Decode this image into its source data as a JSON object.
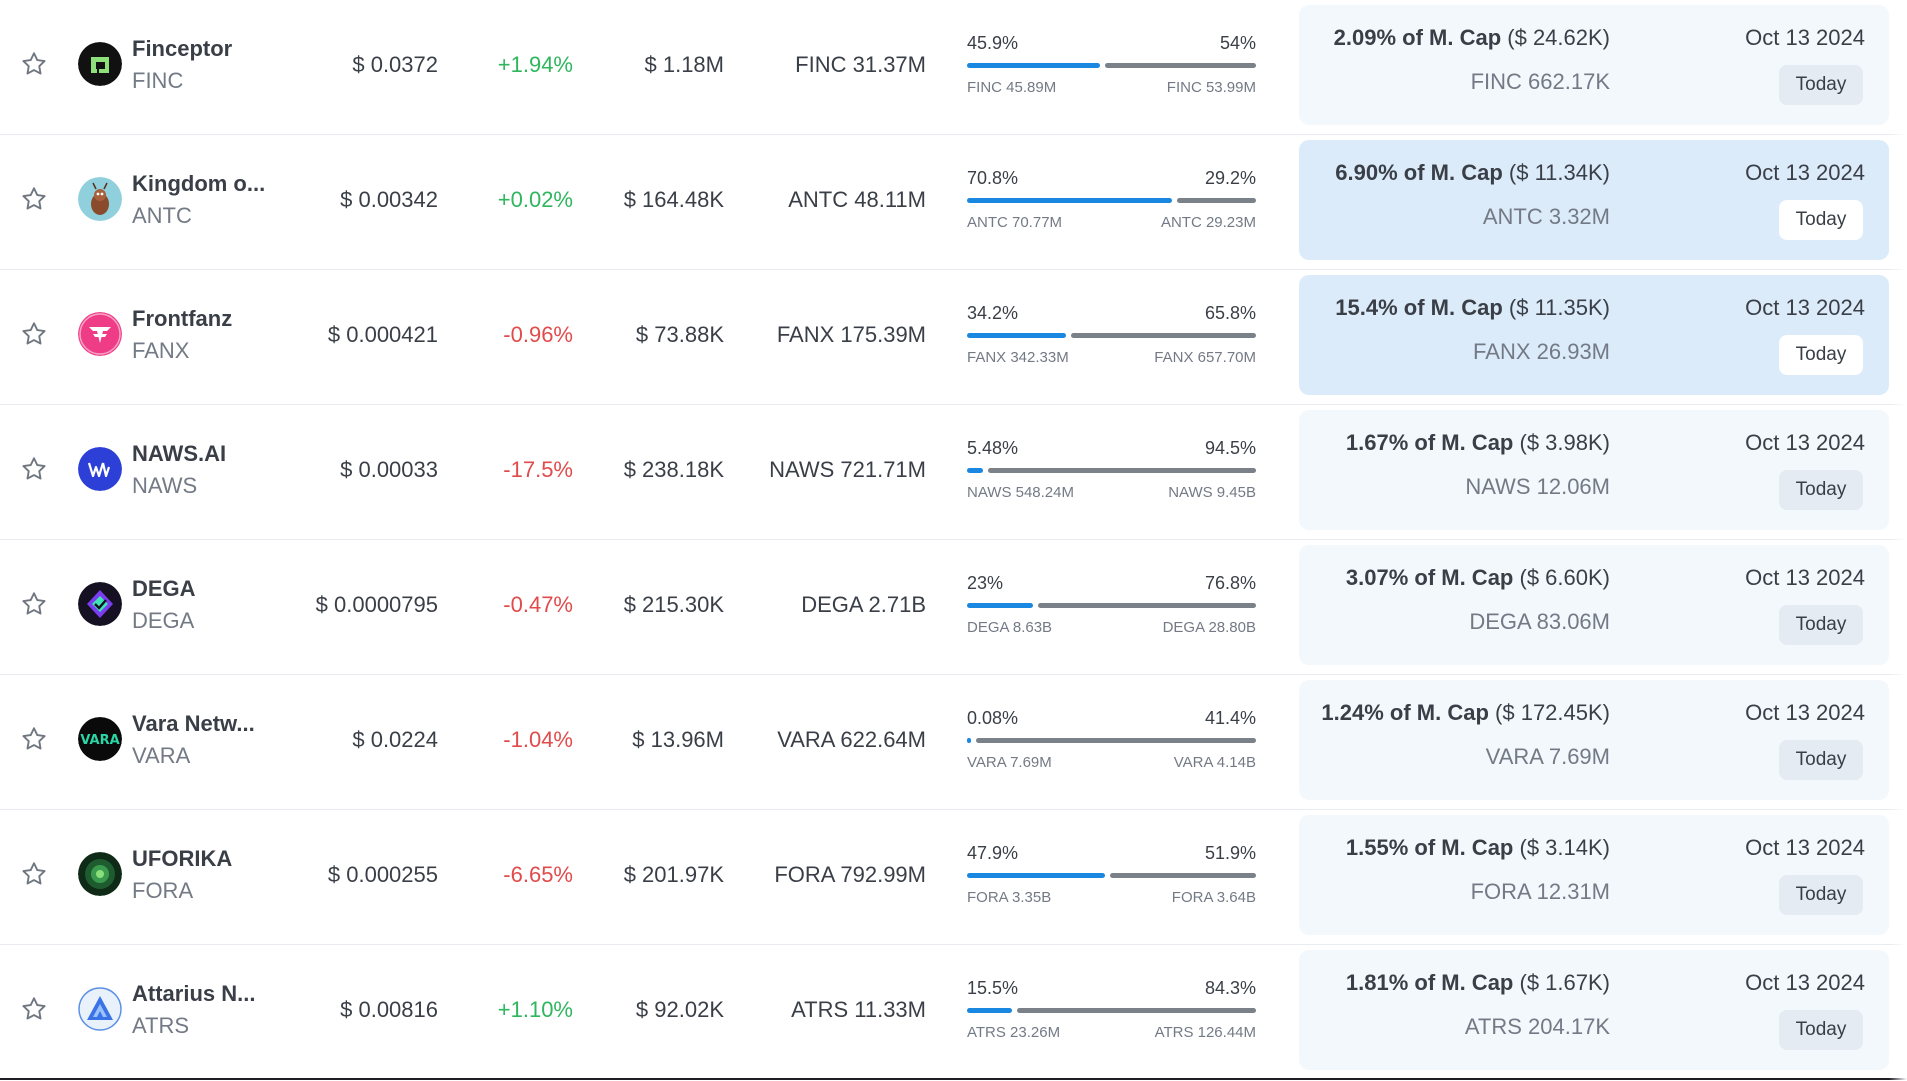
{
  "colors": {
    "accent": "#1a87e0",
    "up": "#2fb65e",
    "down": "#e24b4b",
    "highlight": "#dcebfa"
  },
  "rows": [
    {
      "name": "Finceptor",
      "symbol": "FINC",
      "price": "$ 0.0372",
      "change": "+1.94%",
      "direction": "up",
      "market_cap": "$ 1.18M",
      "circ_supply": "FINC 31.37M",
      "unlocked_pct": "45.9%",
      "locked_pct": "54%",
      "unlocked_fraction": 0.459,
      "unlocked_amount": "FINC 45.89M",
      "locked_amount": "FINC 53.99M",
      "next_unlock_pct": "2.09% of M. Cap",
      "next_unlock_value": "($ 24.62K)",
      "next_unlock_amount": "FINC 662.17K",
      "date": "Oct 13 2024",
      "countdown": "Today",
      "highlighted": false,
      "logo": "finceptor-logo"
    },
    {
      "name": "Kingdom o...",
      "symbol": "ANTC",
      "price": "$ 0.00342",
      "change": "+0.02%",
      "direction": "up",
      "market_cap": "$ 164.48K",
      "circ_supply": "ANTC 48.11M",
      "unlocked_pct": "70.8%",
      "locked_pct": "29.2%",
      "unlocked_fraction": 0.708,
      "unlocked_amount": "ANTC 70.77M",
      "locked_amount": "ANTC 29.23M",
      "next_unlock_pct": "6.90% of M. Cap",
      "next_unlock_value": "($ 11.34K)",
      "next_unlock_amount": "ANTC 3.32M",
      "date": "Oct 13 2024",
      "countdown": "Today",
      "highlighted": true,
      "logo": "kingdom-logo"
    },
    {
      "name": "Frontfanz",
      "symbol": "FANX",
      "price": "$ 0.000421",
      "change": "-0.96%",
      "direction": "down",
      "market_cap": "$ 73.88K",
      "circ_supply": "FANX 175.39M",
      "unlocked_pct": "34.2%",
      "locked_pct": "65.8%",
      "unlocked_fraction": 0.342,
      "unlocked_amount": "FANX 342.33M",
      "locked_amount": "FANX 657.70M",
      "next_unlock_pct": "15.4% of M. Cap",
      "next_unlock_value": "($ 11.35K)",
      "next_unlock_amount": "FANX 26.93M",
      "date": "Oct 13 2024",
      "countdown": "Today",
      "highlighted": true,
      "logo": "frontfanz-logo"
    },
    {
      "name": "NAWS.AI",
      "symbol": "NAWS",
      "price": "$ 0.00033",
      "change": "-17.5%",
      "direction": "down",
      "market_cap": "$ 238.18K",
      "circ_supply": "NAWS 721.71M",
      "unlocked_pct": "5.48%",
      "locked_pct": "94.5%",
      "unlocked_fraction": 0.0548,
      "unlocked_amount": "NAWS 548.24M",
      "locked_amount": "NAWS 9.45B",
      "next_unlock_pct": "1.67% of M. Cap",
      "next_unlock_value": "($ 3.98K)",
      "next_unlock_amount": "NAWS 12.06M",
      "date": "Oct 13 2024",
      "countdown": "Today",
      "highlighted": false,
      "logo": "naws-logo"
    },
    {
      "name": "DEGA",
      "symbol": "DEGA",
      "price": "$ 0.0000795",
      "change": "-0.47%",
      "direction": "down",
      "market_cap": "$ 215.30K",
      "circ_supply": "DEGA 2.71B",
      "unlocked_pct": "23%",
      "locked_pct": "76.8%",
      "unlocked_fraction": 0.23,
      "unlocked_amount": "DEGA 8.63B",
      "locked_amount": "DEGA 28.80B",
      "next_unlock_pct": "3.07% of M. Cap",
      "next_unlock_value": "($ 6.60K)",
      "next_unlock_amount": "DEGA 83.06M",
      "date": "Oct 13 2024",
      "countdown": "Today",
      "highlighted": false,
      "logo": "dega-logo"
    },
    {
      "name": "Vara Netw...",
      "symbol": "VARA",
      "price": "$ 0.0224",
      "change": "-1.04%",
      "direction": "down",
      "market_cap": "$ 13.96M",
      "circ_supply": "VARA 622.64M",
      "unlocked_pct": "0.08%",
      "locked_pct": "41.4%",
      "unlocked_fraction": 0.0008,
      "unlocked_amount": "VARA 7.69M",
      "locked_amount": "VARA 4.14B",
      "next_unlock_pct": "1.24% of M. Cap",
      "next_unlock_value": "($ 172.45K)",
      "next_unlock_amount": "VARA 7.69M",
      "date": "Oct 13 2024",
      "countdown": "Today",
      "highlighted": false,
      "logo": "vara-logo"
    },
    {
      "name": "UFORIKA",
      "symbol": "FORA",
      "price": "$ 0.000255",
      "change": "-6.65%",
      "direction": "down",
      "market_cap": "$ 201.97K",
      "circ_supply": "FORA 792.99M",
      "unlocked_pct": "47.9%",
      "locked_pct": "51.9%",
      "unlocked_fraction": 0.479,
      "unlocked_amount": "FORA 3.35B",
      "locked_amount": "FORA 3.64B",
      "next_unlock_pct": "1.55% of M. Cap",
      "next_unlock_value": "($ 3.14K)",
      "next_unlock_amount": "FORA 12.31M",
      "date": "Oct 13 2024",
      "countdown": "Today",
      "highlighted": false,
      "logo": "uforika-logo"
    },
    {
      "name": "Attarius N...",
      "symbol": "ATRS",
      "price": "$ 0.00816",
      "change": "+1.10%",
      "direction": "up",
      "market_cap": "$ 92.02K",
      "circ_supply": "ATRS 11.33M",
      "unlocked_pct": "15.5%",
      "locked_pct": "84.3%",
      "unlocked_fraction": 0.155,
      "unlocked_amount": "ATRS 23.26M",
      "locked_amount": "ATRS 126.44M",
      "next_unlock_pct": "1.81% of M. Cap",
      "next_unlock_value": "($ 1.67K)",
      "next_unlock_amount": "ATRS 204.17K",
      "date": "Oct 13 2024",
      "countdown": "Today",
      "highlighted": false,
      "logo": "attarius-logo"
    }
  ]
}
